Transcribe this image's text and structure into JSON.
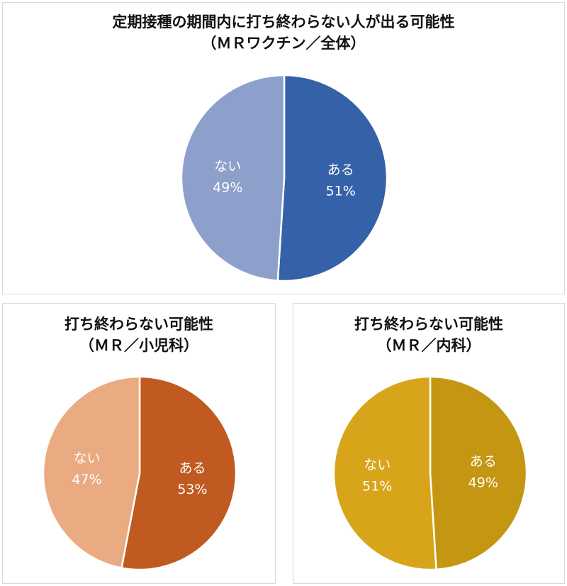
{
  "chart_data": [
    {
      "type": "pie",
      "title": "定期接種の期間内に打ち終わらない人が出る可能性",
      "subtitle": "（ＭＲワクチン／全体）",
      "slices": [
        {
          "label": "ある",
          "value": 51,
          "display": "51%",
          "color": "#3561a8"
        },
        {
          "label": "ない",
          "value": 49,
          "display": "49%",
          "color": "#8da0cc"
        }
      ]
    },
    {
      "type": "pie",
      "title": "打ち終わらない可能性",
      "subtitle": "（ＭＲ／小児科）",
      "slices": [
        {
          "label": "ある",
          "value": 53,
          "display": "53%",
          "color": "#c05a20"
        },
        {
          "label": "ない",
          "value": 47,
          "display": "47%",
          "color": "#eaaa82"
        }
      ]
    },
    {
      "type": "pie",
      "title": "打ち終わらない可能性",
      "subtitle": "（ＭＲ／内科）",
      "slices": [
        {
          "label": "ある",
          "value": 49,
          "display": "49%",
          "color": "#c49612"
        },
        {
          "label": "ない",
          "value": 51,
          "display": "51%",
          "color": "#d8a419"
        }
      ]
    }
  ]
}
